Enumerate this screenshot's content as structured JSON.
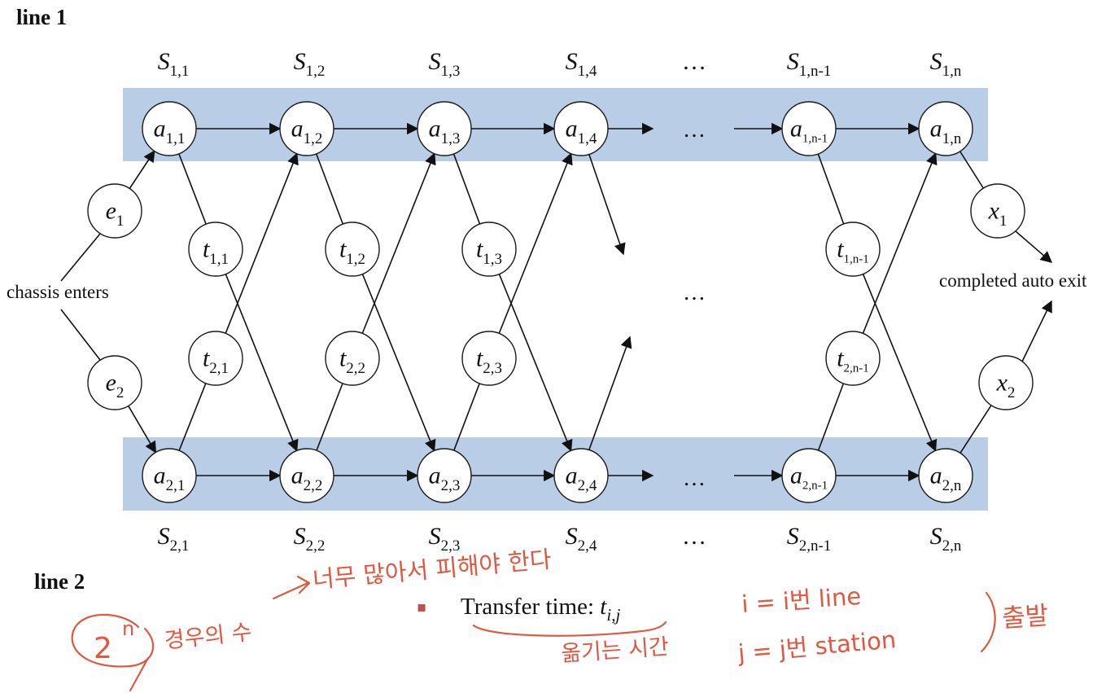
{
  "line_labels": {
    "top": "line 1",
    "bottom": "line 2"
  },
  "stations": {
    "top": [
      {
        "base": "S",
        "sub": "1,1"
      },
      {
        "base": "S",
        "sub": "1,2"
      },
      {
        "base": "S",
        "sub": "1,3"
      },
      {
        "base": "S",
        "sub": "1,4"
      },
      {
        "base": "…",
        "sub": ""
      },
      {
        "base": "S",
        "sub": "1,n-1"
      },
      {
        "base": "S",
        "sub": "1,n"
      }
    ],
    "bottom": [
      {
        "base": "S",
        "sub": "2,1"
      },
      {
        "base": "S",
        "sub": "2,2"
      },
      {
        "base": "S",
        "sub": "2,3"
      },
      {
        "base": "S",
        "sub": "2,4"
      },
      {
        "base": "…",
        "sub": ""
      },
      {
        "base": "S",
        "sub": "2,n-1"
      },
      {
        "base": "S",
        "sub": "2,n"
      }
    ]
  },
  "assembly": {
    "top": [
      {
        "base": "a",
        "sub": "1,1"
      },
      {
        "base": "a",
        "sub": "1,2"
      },
      {
        "base": "a",
        "sub": "1,3"
      },
      {
        "base": "a",
        "sub": "1,4"
      },
      {
        "base": "a",
        "sub": "1,n-1"
      },
      {
        "base": "a",
        "sub": "1,n"
      }
    ],
    "bottom": [
      {
        "base": "a",
        "sub": "2,1"
      },
      {
        "base": "a",
        "sub": "2,2"
      },
      {
        "base": "a",
        "sub": "2,3"
      },
      {
        "base": "a",
        "sub": "2,4"
      },
      {
        "base": "a",
        "sub": "2,n-1"
      },
      {
        "base": "a",
        "sub": "2,n"
      }
    ]
  },
  "transfers": {
    "top": [
      {
        "base": "t",
        "sub": "1,1"
      },
      {
        "base": "t",
        "sub": "1,2"
      },
      {
        "base": "t",
        "sub": "1,3"
      },
      {
        "base": "t",
        "sub": "1,n-1"
      }
    ],
    "bottom": [
      {
        "base": "t",
        "sub": "2,1"
      },
      {
        "base": "t",
        "sub": "2,2"
      },
      {
        "base": "t",
        "sub": "2,3"
      },
      {
        "base": "t",
        "sub": "2,n-1"
      }
    ]
  },
  "entry": [
    {
      "base": "e",
      "sub": "1"
    },
    {
      "base": "e",
      "sub": "2"
    }
  ],
  "exit": [
    {
      "base": "x",
      "sub": "1"
    },
    {
      "base": "x",
      "sub": "2"
    }
  ],
  "ellipsis": "…",
  "start_label": "chassis enters",
  "end_label": "completed auto exit",
  "bullet": {
    "marker": "▪",
    "text": "Transfer time: ",
    "var_base": "t",
    "var_sub": "i,j"
  },
  "colors": {
    "band": "#b9cde6",
    "ink": "#e0583f",
    "bullet": "#c0504d"
  },
  "handwriting": {
    "power_base": "2",
    "power_exp": "n",
    "cases": "경우의 수",
    "too_many": "너무 많아서 피해야 한다",
    "moving_time": "옮기는 시간",
    "i_def": "i = i번 line",
    "j_def": "j = j번 station",
    "depart": "출발"
  }
}
